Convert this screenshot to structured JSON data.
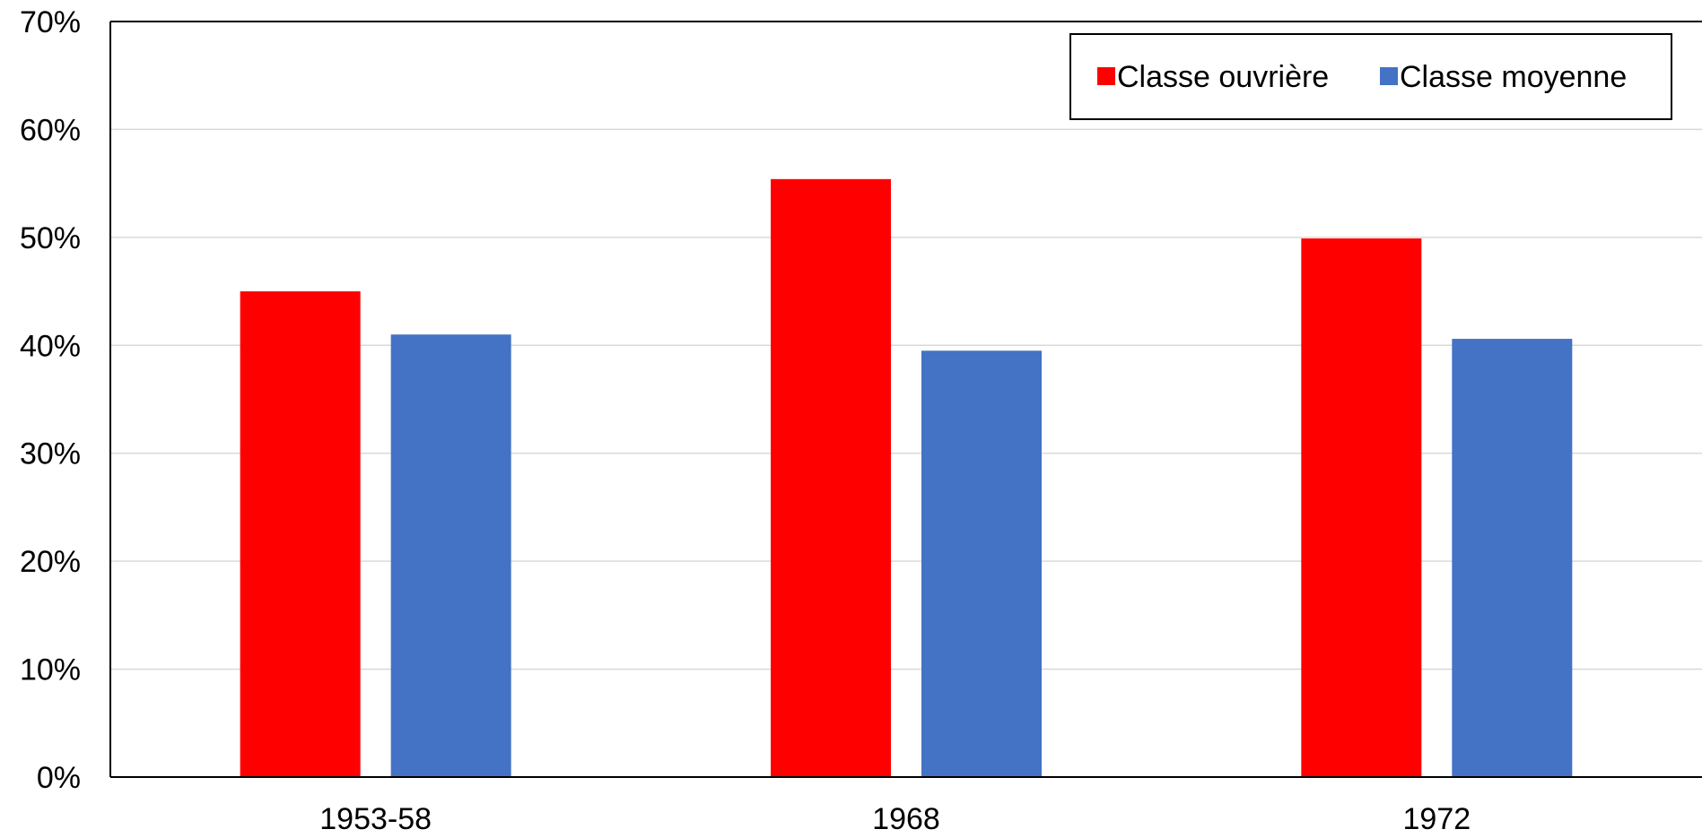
{
  "chart_data": {
    "type": "bar",
    "title": "",
    "categories": [
      "1953-58",
      "1968",
      "1972"
    ],
    "series": [
      {
        "name": "Classe ouvrière",
        "color": "#FF0000",
        "values": [
          45,
          55.4,
          49.9
        ]
      },
      {
        "name": "Classe moyenne",
        "color": "#4472C4",
        "values": [
          41,
          39.5,
          40.6
        ]
      }
    ],
    "y_ticks": [
      "0%",
      "10%",
      "20%",
      "30%",
      "40%",
      "50%",
      "60%",
      "70%"
    ],
    "ylim": [
      0,
      70
    ],
    "grid": true,
    "legend_position": "top-right",
    "xlabel": "",
    "ylabel": ""
  }
}
